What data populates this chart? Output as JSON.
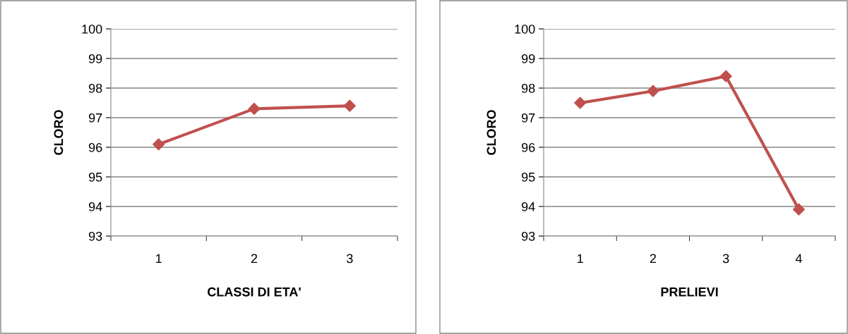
{
  "chart_data": [
    {
      "type": "line",
      "xlabel": "CLASSI DI ETA'",
      "ylabel": "CLORO",
      "categories": [
        "1",
        "2",
        "3"
      ],
      "series": [
        {
          "color": "#c0504d",
          "values": [
            96.1,
            97.3,
            97.4
          ]
        }
      ],
      "ylim": [
        93,
        100
      ],
      "yticks": [
        93,
        94,
        95,
        96,
        97,
        98,
        99,
        100
      ],
      "grid": "y",
      "marker": "diamond",
      "legend": false
    },
    {
      "type": "line",
      "xlabel": "PRELIEVI",
      "ylabel": "CLORO",
      "categories": [
        "1",
        "2",
        "3",
        "4"
      ],
      "series": [
        {
          "color": "#c0504d",
          "values": [
            97.5,
            97.9,
            98.4,
            93.9
          ]
        }
      ],
      "ylim": [
        93,
        100
      ],
      "yticks": [
        93,
        94,
        95,
        96,
        97,
        98,
        99,
        100
      ],
      "grid": "y",
      "marker": "diamond",
      "legend": false
    }
  ]
}
